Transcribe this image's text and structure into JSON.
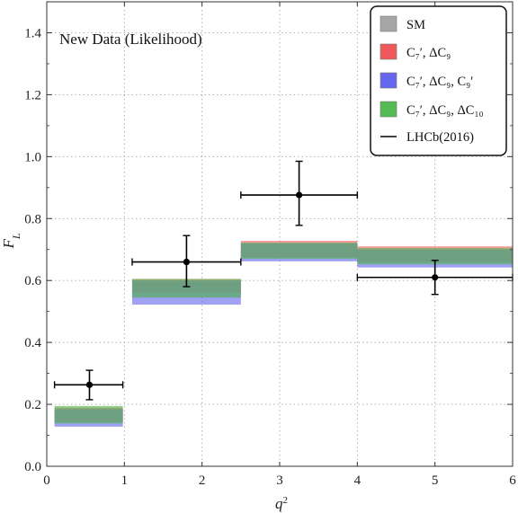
{
  "chart_data": {
    "type": "bar",
    "annotation": "New Data (Likelihood)",
    "xlabel": "q²",
    "ylabel": "F_L",
    "xlim": [
      0,
      6
    ],
    "ylim": [
      0,
      1.5
    ],
    "x_ticks": [
      "0",
      "1",
      "2",
      "3",
      "4",
      "5",
      "6"
    ],
    "y_ticks": [
      "0.0",
      "0.2",
      "0.4",
      "0.6",
      "0.8",
      "1.0",
      "1.2",
      "1.4"
    ],
    "grid": true,
    "legend_position": "top-right",
    "bins": [
      [
        0.1,
        0.98
      ],
      [
        1.1,
        2.5
      ],
      [
        2.5,
        4.0
      ],
      [
        4.0,
        6.0
      ]
    ],
    "series": [
      {
        "name": "SM",
        "color": "#a6a6a6",
        "low": [
          0.14,
          0.545,
          0.672,
          0.655
        ],
        "high": [
          0.182,
          0.595,
          0.718,
          0.7
        ]
      },
      {
        "name": "C₇′, ΔC₉",
        "color": "#ee5a5a",
        "low": [
          0.145,
          0.56,
          0.675,
          0.66
        ],
        "high": [
          0.19,
          0.605,
          0.728,
          0.71
        ]
      },
      {
        "name": "C₇′, ΔC₉, C₉′",
        "color": "#6666ee",
        "low": [
          0.128,
          0.522,
          0.662,
          0.642
        ],
        "high": [
          0.185,
          0.6,
          0.72,
          0.7
        ]
      },
      {
        "name": "C₇′, ΔC₉, ΔC₁₀",
        "color": "#55bb55",
        "low": [
          0.138,
          0.545,
          0.67,
          0.652
        ],
        "high": [
          0.195,
          0.605,
          0.722,
          0.705
        ]
      }
    ],
    "measurements": {
      "name": "LHCb(2016)",
      "points": [
        {
          "x": 0.55,
          "xerr": [
            0.1,
            0.98
          ],
          "y": 0.263,
          "yerr": [
            0.215,
            0.31
          ]
        },
        {
          "x": 1.8,
          "xerr": [
            1.1,
            2.5
          ],
          "y": 0.66,
          "yerr": [
            0.58,
            0.745
          ]
        },
        {
          "x": 3.25,
          "xerr": [
            2.5,
            4.0
          ],
          "y": 0.876,
          "yerr": [
            0.778,
            0.985
          ]
        },
        {
          "x": 5.0,
          "xerr": [
            4.0,
            6.0
          ],
          "y": 0.61,
          "yerr": [
            0.555,
            0.665
          ]
        }
      ]
    }
  }
}
